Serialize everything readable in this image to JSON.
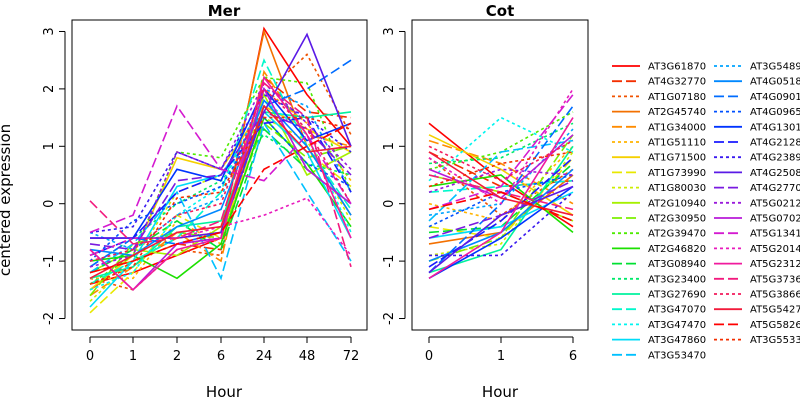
{
  "ylabel": "centered expression",
  "colors": [
    "#FF0000",
    "#F32F00",
    "#F05200",
    "#F37000",
    "#FF8C00",
    "#FFB400",
    "#F5D000",
    "#E8E800",
    "#CDEE00",
    "#A6F000",
    "#7CF000",
    "#4EEC00",
    "#1CE000",
    "#00E032",
    "#00EA6A",
    "#00F29E",
    "#00F8CC",
    "#00F5F0",
    "#00DCF8",
    "#00C0FF",
    "#00A4FF",
    "#0088FF",
    "#006CFF",
    "#0050FF",
    "#0034FF",
    "#1A1AFF",
    "#3A1AF0",
    "#5A1AE6",
    "#7A1AE0",
    "#9A1ADC",
    "#B81AD8",
    "#D41AD0",
    "#E81ABC",
    "#F01A9E",
    "#F21A7E",
    "#F31A5C",
    "#F21A3A"
  ],
  "chart_data": [
    {
      "type": "line",
      "title": "Mer",
      "xlabel": "Hour",
      "ylabel": "centered expression",
      "categories": [
        "0",
        "1",
        "2",
        "6",
        "24",
        "48",
        "72"
      ],
      "yticks": [
        "-2",
        "-1",
        "0",
        "1",
        "2",
        "3"
      ],
      "ylim": [
        -2.2,
        3.2
      ],
      "series": [
        {
          "name": "AT3G61870",
          "values": [
            -1.4,
            -1.2,
            -0.9,
            -0.6,
            3.05,
            1.9,
            1.0
          ]
        },
        {
          "name": "AT4G32770",
          "values": [
            -1.5,
            -1.0,
            -0.7,
            -0.8,
            2.2,
            1.6,
            1.5
          ]
        },
        {
          "name": "AT1G07180",
          "values": [
            -1.3,
            -1.5,
            -0.8,
            -0.9,
            1.9,
            2.6,
            1.2
          ]
        },
        {
          "name": "AT2G45740",
          "values": [
            -1.2,
            -1.0,
            -0.6,
            -0.5,
            3.0,
            1.0,
            -0.2
          ]
        },
        {
          "name": "AT1G34000",
          "values": [
            -1.6,
            -1.1,
            -0.5,
            -1.0,
            2.3,
            1.2,
            1.0
          ]
        },
        {
          "name": "AT1G51110",
          "values": [
            -1.3,
            -1.3,
            -0.3,
            -0.7,
            2.0,
            1.4,
            0.4
          ]
        },
        {
          "name": "AT1G71500",
          "values": [
            -1.5,
            -0.9,
            0.8,
            0.6,
            1.7,
            1.3,
            0.9
          ]
        },
        {
          "name": "AT1G73990",
          "values": [
            -1.9,
            -1.2,
            -0.2,
            -0.6,
            1.6,
            0.9,
            0.3
          ]
        },
        {
          "name": "AT1G80030",
          "values": [
            -1.7,
            -1.0,
            0.2,
            0.5,
            1.5,
            1.1,
            -0.3
          ]
        },
        {
          "name": "AT2G10940",
          "values": [
            -1.2,
            -0.8,
            -0.9,
            -0.4,
            1.9,
            0.5,
            0.9
          ]
        },
        {
          "name": "AT2G30950",
          "values": [
            -1.6,
            -0.7,
            -0.5,
            -0.6,
            1.4,
            0.8,
            1.0
          ]
        },
        {
          "name": "AT2G39470",
          "values": [
            -1.4,
            -0.9,
            0.9,
            0.8,
            2.2,
            2.1,
            0.2
          ]
        },
        {
          "name": "AT2G46820",
          "values": [
            -1.0,
            -0.9,
            -1.3,
            -0.7,
            1.5,
            0.7,
            -0.4
          ]
        },
        {
          "name": "AT3G08940",
          "values": [
            -1.2,
            -0.8,
            -0.3,
            -0.8,
            1.3,
            0.6,
            0.0
          ]
        },
        {
          "name": "AT3G23400",
          "values": [
            -1.1,
            -0.6,
            0.0,
            0.4,
            1.2,
            0.7,
            0.5
          ]
        },
        {
          "name": "AT3G27690",
          "values": [
            -1.3,
            -1.1,
            -0.4,
            -0.3,
            1.6,
            1.5,
            1.6
          ]
        },
        {
          "name": "AT3G47070",
          "values": [
            -1.4,
            -1.0,
            -0.6,
            0.2,
            2.5,
            1.0,
            -0.1
          ]
        },
        {
          "name": "AT3G47470",
          "values": [
            -1.5,
            -1.2,
            -0.2,
            0.3,
            1.8,
            1.2,
            -0.5
          ]
        },
        {
          "name": "AT3G47860",
          "values": [
            -1.8,
            -1.0,
            0.3,
            0.5,
            1.6,
            0.9,
            -0.6
          ]
        },
        {
          "name": "AT3G53470",
          "values": [
            -1.2,
            -0.7,
            0.2,
            -1.3,
            1.4,
            0.2,
            -1.0
          ]
        },
        {
          "name": "AT3G5489",
          "values": [
            -0.5,
            -0.8,
            -0.2,
            0.1,
            2.0,
            1.7,
            0.2
          ]
        },
        {
          "name": "AT4G0518",
          "values": [
            -0.8,
            -0.9,
            -0.4,
            -0.1,
            1.8,
            1.0,
            -0.2
          ]
        },
        {
          "name": "AT4G0901",
          "values": [
            -1.1,
            -0.6,
            -0.7,
            -0.5,
            1.7,
            2.0,
            2.5
          ]
        },
        {
          "name": "AT4G0965",
          "values": [
            -1.0,
            -0.3,
            0.0,
            0.3,
            1.5,
            0.7,
            0.3
          ]
        },
        {
          "name": "AT4G1301",
          "values": [
            -0.6,
            -0.6,
            0.6,
            0.4,
            2.0,
            1.1,
            1.4
          ]
        },
        {
          "name": "AT4G2128",
          "values": [
            -0.9,
            -0.6,
            0.2,
            0.5,
            1.4,
            1.5,
            0.2
          ]
        },
        {
          "name": "AT4G2389",
          "values": [
            -0.5,
            -0.4,
            0.9,
            0.6,
            1.9,
            1.5,
            0.9
          ]
        },
        {
          "name": "AT4G2508",
          "values": [
            -0.6,
            -0.6,
            -0.6,
            -0.5,
            1.6,
            2.95,
            1.0
          ]
        },
        {
          "name": "AT4G2770",
          "values": [
            -0.7,
            -0.8,
            0.4,
            0.5,
            1.6,
            1.3,
            0.5
          ]
        },
        {
          "name": "AT5G0212",
          "values": [
            -1.1,
            -0.9,
            0.9,
            0.6,
            2.1,
            1.4,
            0.6
          ]
        },
        {
          "name": "AT5G0702",
          "values": [
            -0.8,
            -1.5,
            -0.7,
            -0.6,
            2.0,
            0.6,
            0.0
          ]
        },
        {
          "name": "AT5G1341",
          "values": [
            -0.5,
            -0.2,
            1.7,
            0.6,
            0.4,
            1.2,
            0.0
          ]
        },
        {
          "name": "AT5G2014",
          "values": [
            -0.9,
            -0.6,
            -0.6,
            -0.4,
            -0.2,
            0.1,
            -0.9
          ]
        },
        {
          "name": "AT5G2312",
          "values": [
            -0.8,
            -1.5,
            -0.8,
            -0.6,
            2.2,
            1.2,
            -0.6
          ]
        },
        {
          "name": "AT5G3736",
          "values": [
            0.05,
            -0.7,
            -0.6,
            -0.3,
            2.1,
            1.5,
            -1.1
          ]
        },
        {
          "name": "AT5G3866",
          "values": [
            -1.0,
            -0.8,
            -0.2,
            0.0,
            2.0,
            1.3,
            0.0
          ]
        },
        {
          "name": "AT5G5427",
          "values": [
            -1.3,
            -0.9,
            -0.5,
            -0.4,
            1.7,
            0.9,
            1.0
          ]
        },
        {
          "name": "AT5G5826",
          "values": [
            -1.2,
            -1.0,
            -0.7,
            -0.5,
            0.6,
            1.0,
            1.4
          ]
        },
        {
          "name": "AT3G5533",
          "values": [
            -1.4,
            -1.1,
            0.1,
            0.2,
            1.5,
            1.5,
            1.3
          ]
        }
      ]
    },
    {
      "type": "line",
      "title": "Cot",
      "xlabel": "Hour",
      "categories": [
        "0",
        "1",
        "6"
      ],
      "yticks": [
        "-2",
        "-1",
        "0",
        "1",
        "2",
        "3"
      ],
      "ylim": [
        -2.2,
        3.2
      ],
      "series": [
        {
          "name": "AT3G61870",
          "values": [
            1.4,
            0.4,
            -0.4
          ]
        },
        {
          "name": "AT4G32770",
          "values": [
            0.9,
            0.3,
            0.4
          ]
        },
        {
          "name": "AT1G07180",
          "values": [
            0.8,
            -0.2,
            0.6
          ]
        },
        {
          "name": "AT2G45740",
          "values": [
            -0.7,
            -0.5,
            0.5
          ]
        },
        {
          "name": "AT1G34000",
          "values": [
            1.1,
            0.7,
            0.0
          ]
        },
        {
          "name": "AT1G51110",
          "values": [
            0.0,
            -0.3,
            1.0
          ]
        },
        {
          "name": "AT1G71500",
          "values": [
            1.2,
            0.6,
            -0.2
          ]
        },
        {
          "name": "AT1G73990",
          "values": [
            -0.4,
            -0.6,
            0.8
          ]
        },
        {
          "name": "AT1G80030",
          "values": [
            -0.9,
            -0.7,
            0.9
          ]
        },
        {
          "name": "AT2G10940",
          "values": [
            0.5,
            0.2,
            -0.3
          ]
        },
        {
          "name": "AT2G30950",
          "values": [
            -1.0,
            -0.6,
            1.2
          ]
        },
        {
          "name": "AT2G39470",
          "values": [
            0.6,
            0.9,
            1.6
          ]
        },
        {
          "name": "AT2G46820",
          "values": [
            0.3,
            0.5,
            -0.5
          ]
        },
        {
          "name": "AT3G08940",
          "values": [
            -0.5,
            -0.4,
            0.7
          ]
        },
        {
          "name": "AT3G23400",
          "values": [
            0.7,
            0.8,
            1.4
          ]
        },
        {
          "name": "AT3G27690",
          "values": [
            -1.2,
            -0.8,
            1.0
          ]
        },
        {
          "name": "AT3G47070",
          "values": [
            0.2,
            0.3,
            0.4
          ]
        },
        {
          "name": "AT3G47470",
          "values": [
            0.4,
            1.5,
            0.9
          ]
        },
        {
          "name": "AT3G47860",
          "values": [
            -0.6,
            -0.4,
            0.2
          ]
        },
        {
          "name": "AT3G53470",
          "values": [
            -0.3,
            0.9,
            1.1
          ]
        },
        {
          "name": "AT3G5489",
          "values": [
            -0.2,
            0.0,
            1.3
          ]
        },
        {
          "name": "AT4G0518",
          "values": [
            -1.0,
            -0.5,
            0.6
          ]
        },
        {
          "name": "AT4G0901",
          "values": [
            -1.2,
            0.0,
            1.7
          ]
        },
        {
          "name": "AT4G0965",
          "values": [
            -0.4,
            0.2,
            0.5
          ]
        },
        {
          "name": "AT4G1301",
          "values": [
            -1.3,
            -0.6,
            0.3
          ]
        },
        {
          "name": "AT4G2128",
          "values": [
            -1.1,
            -0.3,
            0.8
          ]
        },
        {
          "name": "AT4G2389",
          "values": [
            -0.9,
            -0.9,
            0.2
          ]
        },
        {
          "name": "AT4G2508",
          "values": [
            -1.2,
            -0.2,
            0.3
          ]
        },
        {
          "name": "AT4G2770",
          "values": [
            -0.6,
            -0.2,
            0.4
          ]
        },
        {
          "name": "AT5G0212",
          "values": [
            0.2,
            0.6,
            0.5
          ]
        },
        {
          "name": "AT5G0702",
          "values": [
            0.6,
            0.1,
            1.2
          ]
        },
        {
          "name": "AT5G1341",
          "values": [
            -0.1,
            0.3,
            1.9
          ]
        },
        {
          "name": "AT5G2014",
          "values": [
            0.8,
            0.0,
            2.0
          ]
        },
        {
          "name": "AT5G2312",
          "values": [
            -1.3,
            -0.5,
            1.5
          ]
        },
        {
          "name": "AT5G3736",
          "values": [
            0.5,
            0.2,
            -0.1
          ]
        },
        {
          "name": "AT5G3866",
          "values": [
            1.0,
            0.4,
            1.1
          ]
        },
        {
          "name": "AT5G5427",
          "values": [
            0.9,
            0.1,
            -0.2
          ]
        },
        {
          "name": "AT5G5826",
          "values": [
            -0.1,
            0.2,
            -0.3
          ]
        },
        {
          "name": "AT3G5533",
          "values": [
            0.3,
            0.7,
            0.9
          ]
        }
      ]
    }
  ]
}
